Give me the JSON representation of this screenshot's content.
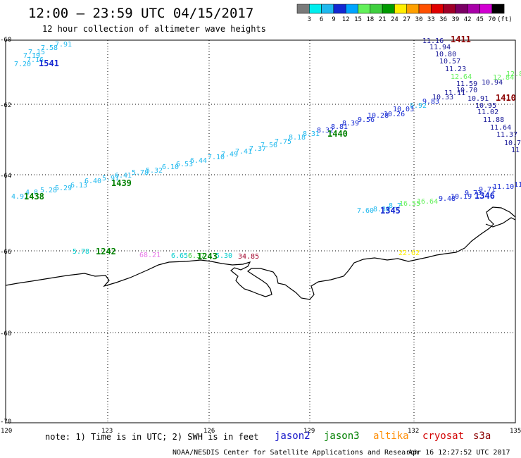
{
  "header": {
    "title": "12:00 – 23:59 UTC 04/15/2017",
    "subtitle": "12 hour collection of altimeter wave heights"
  },
  "colorbar": {
    "labels": [
      "3",
      "6",
      "9",
      "12",
      "15",
      "18",
      "21",
      "24",
      "27",
      "30",
      "33",
      "36",
      "39",
      "42",
      "45",
      "70"
    ],
    "colors": [
      "#7a7a7a",
      "#00eeee",
      "#1fb8ee",
      "#1428d2",
      "#00a4ff",
      "#62f05a",
      "#3fcf3f",
      "#009a00",
      "#ffee00",
      "#ffa000",
      "#ff5000",
      "#e00000",
      "#a00028",
      "#7a0064",
      "#a800a8",
      "#d200d2",
      "#000000"
    ],
    "unit": "(ft)"
  },
  "axes": {
    "lat_ticks": [
      "-60",
      "-62",
      "-64",
      "-66",
      "-68",
      "-70"
    ],
    "lon_ticks": [
      "120",
      "123",
      "126",
      "129",
      "132",
      "135"
    ]
  },
  "wave_labels": [
    {
      "t": "7.91",
      "c": "#1fb8ee"
    },
    {
      "t": "7.58",
      "c": "#1fb8ee"
    },
    {
      "t": "7.15",
      "c": "#1fb8ee"
    },
    {
      "t": "7.19",
      "c": "#1fb8ee"
    },
    {
      "t": "7.16",
      "c": "#1fb8ee"
    },
    {
      "t": "7.20",
      "c": "#1fb8ee"
    },
    {
      "t": "11.16",
      "c": "#141496"
    },
    {
      "t": "11.94",
      "c": "#141496"
    },
    {
      "t": "10.80",
      "c": "#141496"
    },
    {
      "t": "10.57",
      "c": "#141496"
    },
    {
      "t": "11.23",
      "c": "#141496"
    },
    {
      "t": "12.64",
      "c": "#62f05a"
    },
    {
      "t": "12.84",
      "c": "#62f05a"
    },
    {
      "t": "12.8",
      "c": "#62f05a"
    },
    {
      "t": "11.59",
      "c": "#141496"
    },
    {
      "t": "10.94",
      "c": "#141496"
    },
    {
      "t": "11.11",
      "c": "#141496"
    },
    {
      "t": "10.70",
      "c": "#141496"
    },
    {
      "t": "10.33",
      "c": "#141496"
    },
    {
      "t": "10.91",
      "c": "#141496"
    },
    {
      "t": "10.95",
      "c": "#141496"
    },
    {
      "t": "11.02",
      "c": "#141496"
    },
    {
      "t": "11.88",
      "c": "#141496"
    },
    {
      "t": "11.64",
      "c": "#141496"
    },
    {
      "t": "11.37",
      "c": "#141496"
    },
    {
      "t": "10.7",
      "c": "#141496"
    },
    {
      "t": "11.",
      "c": "#141496"
    },
    {
      "t": "9.83",
      "c": "#1428d2"
    },
    {
      "t": "9.92",
      "c": "#1fb8ee"
    },
    {
      "t": "10.03",
      "c": "#1428d2"
    },
    {
      "t": "10.26",
      "c": "#1428d2"
    },
    {
      "t": "10.28",
      "c": "#1428d2"
    },
    {
      "t": "9.56",
      "c": "#1428d2"
    },
    {
      "t": "8.39",
      "c": "#1428d2"
    },
    {
      "t": "8.81",
      "c": "#1428d2"
    },
    {
      "t": "8.32",
      "c": "#1428d2"
    },
    {
      "t": "8.31",
      "c": "#1fb8ee"
    },
    {
      "t": "8.18",
      "c": "#1fb8ee"
    },
    {
      "t": "7.75",
      "c": "#1fb8ee"
    },
    {
      "t": "7.56",
      "c": "#1fb8ee"
    },
    {
      "t": "7.37",
      "c": "#1fb8ee"
    },
    {
      "t": "7.41",
      "c": "#1fb8ee"
    },
    {
      "t": "7.49",
      "c": "#1fb8ee"
    },
    {
      "t": "7.10",
      "c": "#1fb8ee"
    },
    {
      "t": "6.44",
      "c": "#1fb8ee"
    },
    {
      "t": "6.53",
      "c": "#1fb8ee"
    },
    {
      "t": "6.10",
      "c": "#1fb8ee"
    },
    {
      "t": "5.32",
      "c": "#1fb8ee"
    },
    {
      "t": "5.78",
      "c": "#1fb8ee"
    },
    {
      "t": "6.41",
      "c": "#1fb8ee"
    },
    {
      "t": "5.91",
      "c": "#1fb8ee"
    },
    {
      "t": "6.40",
      "c": "#1fb8ee"
    },
    {
      "t": "6.13",
      "c": "#1fb8ee"
    },
    {
      "t": "5.29",
      "c": "#1fb8ee"
    },
    {
      "t": "5.28",
      "c": "#1fb8ee"
    },
    {
      "t": "4.8",
      "c": "#1fb8ee"
    },
    {
      "t": "4.97",
      "c": "#1fb8ee"
    },
    {
      "t": "7.60",
      "c": "#1fb8ee"
    },
    {
      "t": "8.30",
      "c": "#1fb8ee"
    },
    {
      "t": "8.7",
      "c": "#1fb8ee"
    },
    {
      "t": "16.55",
      "c": "#62f05a"
    },
    {
      "t": "16.64",
      "c": "#62f05a"
    },
    {
      "t": "9.48",
      "c": "#1428d2"
    },
    {
      "t": "10.19",
      "c": "#1428d2"
    },
    {
      "t": "9.73",
      "c": "#1428d2"
    },
    {
      "t": "9.71",
      "c": "#1428d2"
    },
    {
      "t": "11.10",
      "c": "#1428d2"
    },
    {
      "t": "11.9",
      "c": "#1428d2"
    },
    {
      "t": "5.78",
      "c": "#00cccc"
    },
    {
      "t": "68.21",
      "c": "#e878e8"
    },
    {
      "t": "6.65",
      "c": "#00cccc"
    },
    {
      "t": "6.37",
      "c": "#3fcf3f"
    },
    {
      "t": "5.30",
      "c": "#00cccc"
    },
    {
      "t": "34.85",
      "c": "#a00028"
    },
    {
      "t": "22.62",
      "c": "#ffee00"
    }
  ],
  "pass_ids": [
    {
      "t": "1541",
      "c": "#1428d2"
    },
    {
      "t": "1411",
      "c": "#8b0000"
    },
    {
      "t": "1410",
      "c": "#8b0000"
    },
    {
      "t": "1440",
      "c": "#008000"
    },
    {
      "t": "1439",
      "c": "#008000"
    },
    {
      "t": "1438",
      "c": "#008000"
    },
    {
      "t": "1345",
      "c": "#1428d2"
    },
    {
      "t": "1346",
      "c": "#1428d2"
    },
    {
      "t": "1242",
      "c": "#008000"
    },
    {
      "t": "1243",
      "c": "#008000"
    }
  ],
  "footer": {
    "note": "note: 1) Time is in UTC; 2) SWH is in feet",
    "missions": [
      {
        "name": "jason2",
        "color": "#1414c8"
      },
      {
        "name": "jason3",
        "color": "#008000"
      },
      {
        "name": "altika",
        "color": "#ff8c00"
      },
      {
        "name": "cryosat",
        "color": "#d20000"
      },
      {
        "name": "s3a",
        "color": "#8b0000"
      }
    ],
    "credit": "NOAA/NESDIS Center for Satellite Applications and Research",
    "timestamp": "Apr 16 12:27:52 UTC 2017"
  }
}
